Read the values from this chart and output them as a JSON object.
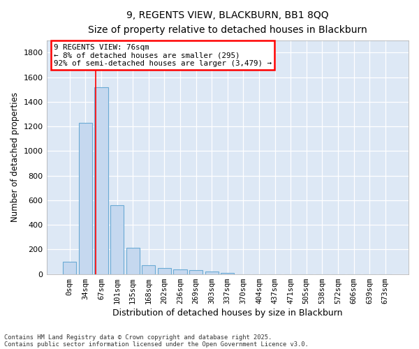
{
  "title_line1": "9, REGENTS VIEW, BLACKBURN, BB1 8QQ",
  "title_line2": "Size of property relative to detached houses in Blackburn",
  "xlabel": "Distribution of detached houses by size in Blackburn",
  "ylabel": "Number of detached properties",
  "bar_color": "#c5d8ef",
  "bar_edge_color": "#6aaad4",
  "background_color": "#dde8f5",
  "categories": [
    "0sqm",
    "34sqm",
    "67sqm",
    "101sqm",
    "135sqm",
    "168sqm",
    "202sqm",
    "236sqm",
    "269sqm",
    "303sqm",
    "337sqm",
    "370sqm",
    "404sqm",
    "437sqm",
    "471sqm",
    "505sqm",
    "538sqm",
    "572sqm",
    "606sqm",
    "639sqm",
    "673sqm"
  ],
  "values": [
    100,
    1230,
    1520,
    560,
    215,
    70,
    50,
    40,
    35,
    20,
    10,
    0,
    0,
    0,
    0,
    0,
    0,
    0,
    0,
    0,
    0
  ],
  "ylim": [
    0,
    1900
  ],
  "yticks": [
    0,
    200,
    400,
    600,
    800,
    1000,
    1200,
    1400,
    1600,
    1800
  ],
  "annotation_title": "9 REGENTS VIEW: 76sqm",
  "annotation_line1": "← 8% of detached houses are smaller (295)",
  "annotation_line2": "92% of semi-detached houses are larger (3,479) →",
  "red_line_x": 1.65,
  "footnote_line1": "Contains HM Land Registry data © Crown copyright and database right 2025.",
  "footnote_line2": "Contains public sector information licensed under the Open Government Licence v3.0."
}
